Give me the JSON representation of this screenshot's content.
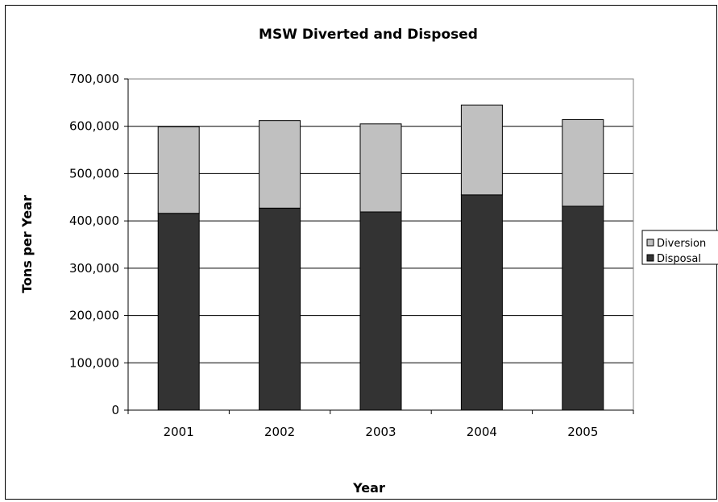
{
  "chart_data": {
    "type": "bar",
    "stacked": true,
    "title": "MSW Diverted and Disposed",
    "xlabel": "Year",
    "ylabel": "Tons per Year",
    "categories": [
      "2001",
      "2002",
      "2003",
      "2004",
      "2005"
    ],
    "ylim": [
      0,
      700000
    ],
    "yticks": [
      0,
      100000,
      200000,
      300000,
      400000,
      500000,
      600000,
      700000
    ],
    "ytick_labels": [
      "0",
      "100,000",
      "200,000",
      "300,000",
      "400,000",
      "500,000",
      "600,000",
      "700,000"
    ],
    "grid": true,
    "legend_position": "right",
    "series": [
      {
        "name": "Disposal",
        "values": [
          416000,
          427000,
          419000,
          455000,
          431000
        ],
        "color": "#333333"
      },
      {
        "name": "Diversion",
        "values": [
          183000,
          185000,
          186000,
          190000,
          183000
        ],
        "color": "#c0c0c0"
      }
    ],
    "legend_order": [
      "Diversion",
      "Disposal"
    ]
  }
}
